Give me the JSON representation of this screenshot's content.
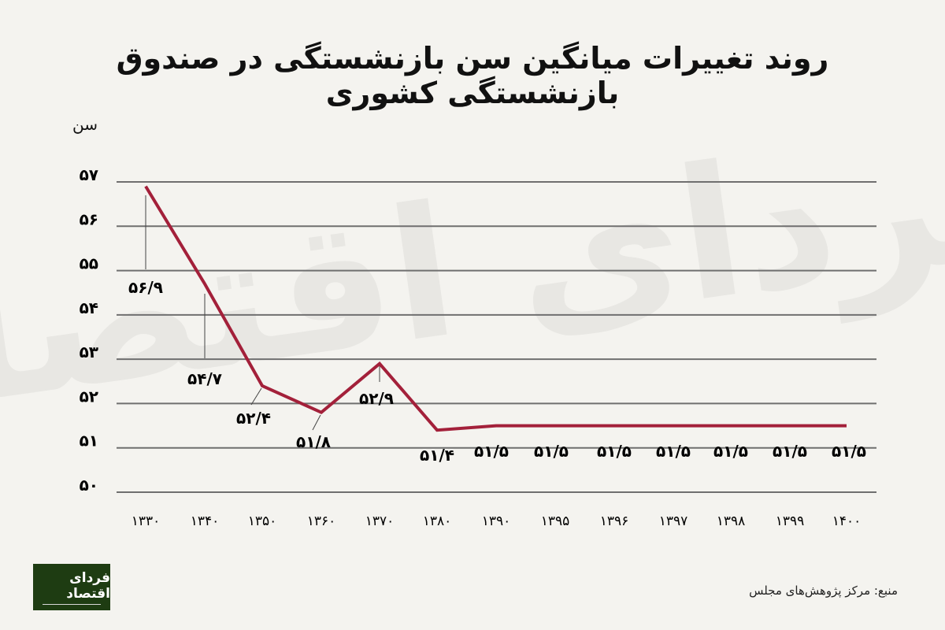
{
  "header": {
    "title": "روند تغییرات میانگین سن بازنشستگی در صندوق بازنشستگی کشوری"
  },
  "axis": {
    "y_title": "سن"
  },
  "footer": {
    "source": "منبع: مرکز پژوهش‌های مجلس",
    "logo_text": "فردای اقتصاد"
  },
  "colors": {
    "background": "#f4f3ef",
    "line": "#a3203a",
    "grid": "#6f6f6f",
    "logo_bg": "#1e3c12"
  },
  "chart_data": {
    "type": "line",
    "title": "روند تغییرات میانگین سن بازنشستگی در صندوق بازنشستگی کشوری",
    "xlabel": "",
    "ylabel": "سن",
    "categories": [
      "۱۳۳۰",
      "۱۳۴۰",
      "۱۳۵۰",
      "۱۳۶۰",
      "۱۳۷۰",
      "۱۳۸۰",
      "۱۳۹۰",
      "۱۳۹۵",
      "۱۳۹۶",
      "۱۳۹۷",
      "۱۳۹۸",
      "۱۳۹۹",
      "۱۴۰۰"
    ],
    "categories_numeric": [
      1330,
      1340,
      1350,
      1360,
      1370,
      1380,
      1390,
      1395,
      1396,
      1397,
      1398,
      1399,
      1400
    ],
    "values": [
      56.9,
      54.7,
      52.4,
      51.8,
      52.9,
      51.4,
      51.5,
      51.5,
      51.5,
      51.5,
      51.5,
      51.5,
      51.5
    ],
    "data_labels": [
      "۵۶/۹",
      "۵۴/۷",
      "۵۲/۴",
      "۵۱/۸",
      "۵۲/۹",
      "۵۱/۴",
      "۵۱/۵",
      "۵۱/۵",
      "۵۱/۵",
      "۵۱/۵",
      "۵۱/۵",
      "۵۱/۵",
      "۵۱/۵"
    ],
    "y_ticks": [
      "۵۰",
      "۵۱",
      "۵۲",
      "۵۳",
      "۵۴",
      "۵۵",
      "۵۶",
      "۵۷"
    ],
    "y_tick_values": [
      50,
      51,
      52,
      53,
      54,
      55,
      56,
      57
    ],
    "ylim": [
      50,
      57
    ],
    "grid": true,
    "legend": null,
    "source": "منبع: مرکز پژوهش‌های مجلس"
  }
}
